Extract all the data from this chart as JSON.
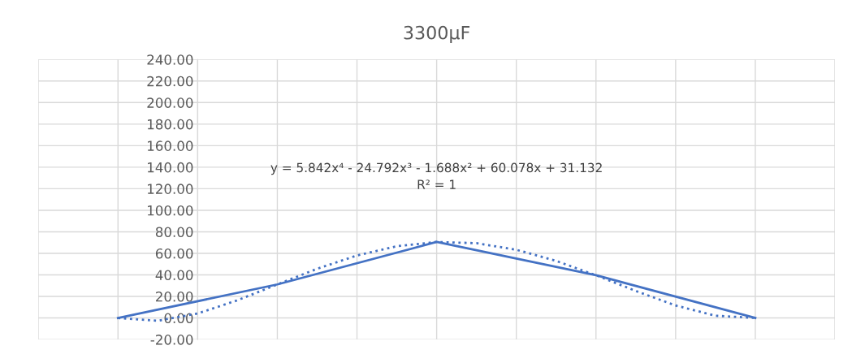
{
  "chart_data": {
    "type": "line",
    "title": "3300µF",
    "categories": [
      null,
      null,
      null,
      null,
      null,
      null,
      null,
      null,
      null,
      null,
      null,
      null,
      null,
      null,
      null,
      null,
      null
    ],
    "series": [
      {
        "color": "#4472c4",
        "values": [
          0,
          null,
          null,
          null,
          31.13,
          null,
          null,
          null,
          70.57,
          null,
          null,
          null,
          39.67,
          null,
          null,
          null,
          0
        ],
        "line_style": "solid"
      },
      {
        "type": "line",
        "color": "#4472c4",
        "line_style": "dotted",
        "values": [
          0,
          -2.57,
          4.14,
          16.42,
          31.13,
          45.68,
          58.02,
          66.63,
          70.57,
          69.43,
          63.35,
          53.02,
          39.67,
          25.08,
          11.58,
          2.07,
          0
        ]
      }
    ],
    "annotations": [
      "y = 5.842x⁴ - 24.792x³ - 1.688x² + 60.078x + 31.132",
      "R² = 1"
    ],
    "ylim": [
      -20,
      240
    ],
    "yticks": [
      {
        "value": -20,
        "label": "-20.00"
      },
      {
        "value": 0,
        "label": "0.00"
      },
      {
        "value": 20,
        "label": "20.00"
      },
      {
        "value": 40,
        "label": "40.00"
      },
      {
        "value": 60,
        "label": "60.00"
      },
      {
        "value": 80,
        "label": "80.00"
      },
      {
        "value": 100,
        "label": "100.00"
      },
      {
        "value": 120,
        "label": "120.00"
      },
      {
        "value": 140,
        "label": "140.00"
      },
      {
        "value": 160,
        "label": "160.00"
      },
      {
        "value": 180,
        "label": "180.00"
      },
      {
        "value": 200,
        "label": "200.00"
      },
      {
        "value": 220,
        "label": "220.00"
      },
      {
        "value": 240,
        "label": "240.00"
      }
    ],
    "tick_labels": "y",
    "grid": true,
    "legend": false,
    "marker": "none"
  }
}
